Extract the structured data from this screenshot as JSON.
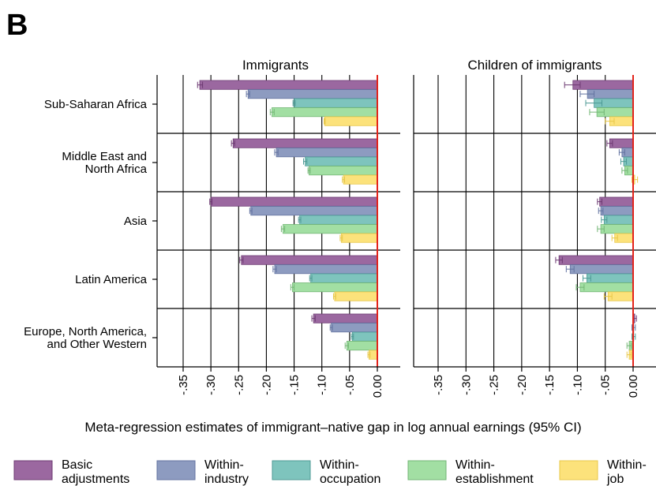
{
  "figure": {
    "panel_letter": "B",
    "xlabel": "Meta-regression estimates of immigrant–native gap in log annual earnings (95% CI)"
  },
  "colors": {
    "series": [
      "#9b68a0",
      "#8d9bc0",
      "#7ec4bd",
      "#a2dfa3",
      "#fce27b"
    ],
    "strokes": [
      "#6d3a72",
      "#6373a0",
      "#4e9a95",
      "#73b675",
      "#e8c84a"
    ],
    "zero_line": "#e3241b"
  },
  "legend": {
    "items": [
      {
        "line1": "Basic",
        "line2": "adjustments"
      },
      {
        "line1": "Within-",
        "line2": "industry"
      },
      {
        "line1": "Within-",
        "line2": "occupation"
      },
      {
        "line1": "Within-",
        "line2": "establishment"
      },
      {
        "line1": "Within-",
        "line2": "job"
      }
    ]
  },
  "chart_data": {
    "type": "bar",
    "orientation": "horizontal",
    "xlim": [
      -0.4,
      0.0
    ],
    "x_ticks": [
      -0.35,
      -0.3,
      -0.25,
      -0.2,
      -0.15,
      -0.1,
      -0.05,
      0.0
    ],
    "x_tick_labels": [
      "-.35",
      "-.30",
      "-.25",
      "-.20",
      "-.15",
      "-.10",
      "-.05",
      "0.00"
    ],
    "grid": true,
    "legend_position": "bottom",
    "categories": [
      [
        "Sub-Saharan Africa"
      ],
      [
        "Middle East and",
        "North Africa"
      ],
      [
        "Asia"
      ],
      [
        "Latin America"
      ],
      [
        "Europe, North America,",
        "and Other Western"
      ]
    ],
    "series_names": [
      "Basic adjustments",
      "Within-industry",
      "Within-occupation",
      "Within-establishment",
      "Within-job"
    ],
    "panels": [
      {
        "title": "Immigrants",
        "values": [
          [
            -0.32,
            -0.233,
            -0.15,
            -0.19,
            -0.095
          ],
          [
            -0.26,
            -0.182,
            -0.13,
            -0.123,
            -0.061
          ],
          [
            -0.3,
            -0.228,
            -0.14,
            -0.17,
            -0.065
          ],
          [
            -0.245,
            -0.185,
            -0.12,
            -0.153,
            -0.077
          ],
          [
            -0.115,
            -0.083,
            -0.045,
            -0.055,
            -0.015
          ]
        ],
        "ci": [
          [
            [
              -0.324,
              -0.315
            ],
            [
              -0.236,
              -0.23
            ],
            [
              -0.152,
              -0.148
            ],
            [
              -0.193,
              -0.186
            ],
            [
              -0.096,
              -0.094
            ]
          ],
          [
            [
              -0.263,
              -0.257
            ],
            [
              -0.185,
              -0.179
            ],
            [
              -0.133,
              -0.127
            ],
            [
              -0.125,
              -0.121
            ],
            [
              -0.063,
              -0.059
            ]
          ],
          [
            [
              -0.302,
              -0.298
            ],
            [
              -0.23,
              -0.226
            ],
            [
              -0.142,
              -0.138
            ],
            [
              -0.173,
              -0.167
            ],
            [
              -0.067,
              -0.063
            ]
          ],
          [
            [
              -0.248,
              -0.242
            ],
            [
              -0.188,
              -0.182
            ],
            [
              -0.122,
              -0.118
            ],
            [
              -0.156,
              -0.15
            ],
            [
              -0.079,
              -0.075
            ]
          ],
          [
            [
              -0.118,
              -0.112
            ],
            [
              -0.085,
              -0.081
            ],
            [
              -0.047,
              -0.043
            ],
            [
              -0.058,
              -0.052
            ],
            [
              -0.017,
              -0.013
            ]
          ]
        ]
      },
      {
        "title": "Children of immigrants",
        "values": [
          [
            -0.108,
            -0.082,
            -0.07,
            -0.065,
            -0.042
          ],
          [
            -0.042,
            -0.02,
            -0.017,
            -0.015,
            0.003
          ],
          [
            -0.06,
            -0.058,
            -0.052,
            -0.058,
            -0.033
          ],
          [
            -0.133,
            -0.113,
            -0.083,
            -0.095,
            -0.045
          ],
          [
            0.003,
            0.001,
            0.001,
            -0.007,
            -0.007
          ]
        ],
        "ci": [
          [
            [
              -0.123,
              -0.095
            ],
            [
              -0.095,
              -0.07
            ],
            [
              -0.085,
              -0.056
            ],
            [
              -0.078,
              -0.052
            ],
            [
              -0.05,
              -0.034
            ]
          ],
          [
            [
              -0.047,
              -0.037
            ],
            [
              -0.025,
              -0.015
            ],
            [
              -0.022,
              -0.012
            ],
            [
              -0.02,
              -0.01
            ],
            [
              -0.002,
              0.008
            ]
          ],
          [
            [
              -0.064,
              -0.056
            ],
            [
              -0.062,
              -0.054
            ],
            [
              -0.057,
              -0.047
            ],
            [
              -0.064,
              -0.052
            ],
            [
              -0.038,
              -0.028
            ]
          ],
          [
            [
              -0.139,
              -0.127
            ],
            [
              -0.12,
              -0.106
            ],
            [
              -0.09,
              -0.076
            ],
            [
              -0.102,
              -0.088
            ],
            [
              -0.052,
              -0.038
            ]
          ],
          [
            [
              0.0,
              0.006
            ],
            [
              -0.002,
              0.004
            ],
            [
              -0.002,
              0.004
            ],
            [
              -0.011,
              -0.003
            ],
            [
              -0.011,
              -0.003
            ]
          ]
        ]
      }
    ]
  }
}
